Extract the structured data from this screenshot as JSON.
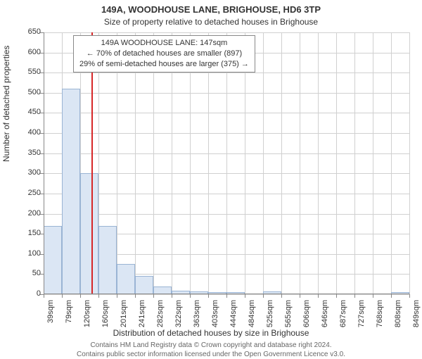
{
  "title_main": "149A, WOODHOUSE LANE, BRIGHOUSE, HD6 3TP",
  "title_sub": "Size of property relative to detached houses in Brighouse",
  "y_axis_label": "Number of detached properties",
  "x_axis_label": "Distribution of detached houses by size in Brighouse",
  "footer_line1": "Contains HM Land Registry data © Crown copyright and database right 2024.",
  "footer_line2": "Contains public sector information licensed under the Open Government Licence v3.0.",
  "chart": {
    "type": "histogram",
    "ylim": [
      0,
      650
    ],
    "ytick_step": 50,
    "y_ticks": [
      0,
      50,
      100,
      150,
      200,
      250,
      300,
      350,
      400,
      450,
      500,
      550,
      600,
      650
    ],
    "x_tick_labels": [
      "39sqm",
      "79sqm",
      "120sqm",
      "160sqm",
      "201sqm",
      "241sqm",
      "282sqm",
      "322sqm",
      "363sqm",
      "403sqm",
      "444sqm",
      "484sqm",
      "525sqm",
      "565sqm",
      "606sqm",
      "646sqm",
      "687sqm",
      "727sqm",
      "768sqm",
      "808sqm",
      "849sqm"
    ],
    "x_numeric": [
      39,
      79,
      120,
      160,
      201,
      241,
      282,
      322,
      363,
      403,
      444,
      484,
      525,
      565,
      606,
      646,
      687,
      727,
      768,
      808,
      849
    ],
    "x_range": [
      39,
      849
    ],
    "bars": [
      {
        "x_start": 39,
        "x_end": 79,
        "value": 170
      },
      {
        "x_start": 79,
        "x_end": 120,
        "value": 510
      },
      {
        "x_start": 120,
        "x_end": 160,
        "value": 300
      },
      {
        "x_start": 160,
        "x_end": 201,
        "value": 170
      },
      {
        "x_start": 201,
        "x_end": 241,
        "value": 75
      },
      {
        "x_start": 241,
        "x_end": 282,
        "value": 45
      },
      {
        "x_start": 282,
        "x_end": 322,
        "value": 20
      },
      {
        "x_start": 322,
        "x_end": 363,
        "value": 8
      },
      {
        "x_start": 363,
        "x_end": 403,
        "value": 7
      },
      {
        "x_start": 403,
        "x_end": 444,
        "value": 6
      },
      {
        "x_start": 444,
        "x_end": 484,
        "value": 5
      },
      {
        "x_start": 484,
        "x_end": 525,
        "value": 0
      },
      {
        "x_start": 525,
        "x_end": 565,
        "value": 7
      },
      {
        "x_start": 565,
        "x_end": 606,
        "value": 0
      },
      {
        "x_start": 606,
        "x_end": 646,
        "value": 0
      },
      {
        "x_start": 646,
        "x_end": 687,
        "value": 0
      },
      {
        "x_start": 687,
        "x_end": 727,
        "value": 0
      },
      {
        "x_start": 727,
        "x_end": 768,
        "value": 0
      },
      {
        "x_start": 768,
        "x_end": 808,
        "value": 0
      },
      {
        "x_start": 808,
        "x_end": 849,
        "value": 5
      }
    ],
    "reference_line_x": 147,
    "reference_line_color": "#d62728",
    "bar_fill": "#dbe6f4",
    "bar_border": "#9ab4d4",
    "grid_color": "#d0d0d0",
    "background": "#ffffff",
    "annotation": {
      "lines": [
        "149A WOODHOUSE LANE: 147sqm",
        "← 70% of detached houses are smaller (897)",
        "29% of semi-detached houses are larger (375) →"
      ],
      "border_color": "#888888"
    }
  }
}
